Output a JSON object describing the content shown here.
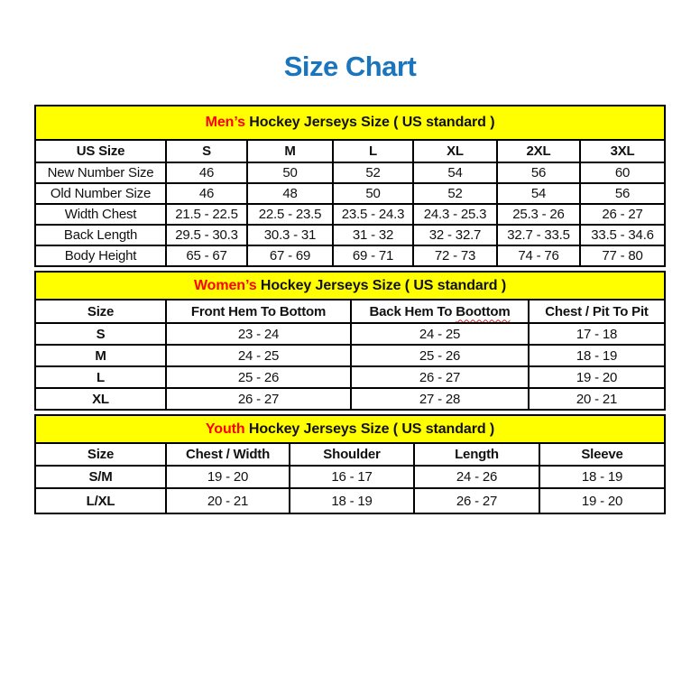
{
  "page_title": "Size Chart",
  "colors": {
    "title_blue": "#1B75BC",
    "band_yellow": "#FFFF00",
    "highlight_red": "#FF0000",
    "border_black": "#000000",
    "text_black": "#111111"
  },
  "spellcheck_word": "Boottom",
  "chart_data": [
    {
      "type": "table",
      "id": "mens",
      "title": "Men’s Hockey Jerseys Size ( US standard )",
      "title_highlight": "Men’s",
      "title_rest": " Hockey Jerseys Size ( US standard )",
      "columns": [
        "US Size",
        "S",
        "M",
        "L",
        "XL",
        "2XL",
        "3XL"
      ],
      "rows": [
        {
          "label": "New Number Size",
          "values": [
            "46",
            "50",
            "52",
            "54",
            "56",
            "60"
          ]
        },
        {
          "label": "Old Number Size",
          "values": [
            "46",
            "48",
            "50",
            "52",
            "54",
            "56"
          ]
        },
        {
          "label": "Width Chest",
          "values": [
            "21.5 - 22.5",
            "22.5 - 23.5",
            "23.5 - 24.3",
            "24.3 - 25.3",
            "25.3 - 26",
            "26 - 27"
          ]
        },
        {
          "label": "Back Length",
          "values": [
            "29.5 - 30.3",
            "30.3 - 31",
            "31 - 32",
            "32 - 32.7",
            "32.7 - 33.5",
            "33.5 - 34.6"
          ]
        },
        {
          "label": "Body Height",
          "values": [
            "65 - 67",
            "67 - 69",
            "69 - 71",
            "72 - 73",
            "74 - 76",
            "77 - 80"
          ]
        }
      ]
    },
    {
      "type": "table",
      "id": "womens",
      "title": "Women’s Hockey Jerseys Size ( US standard )",
      "title_highlight": "Women’s",
      "title_rest": " Hockey Jerseys Size ( US standard )",
      "columns": [
        "Size",
        "Front Hem To Bottom",
        "Back Hem To Boottom",
        "Chest / Pit To Pit"
      ],
      "rows": [
        {
          "label": "S",
          "values": [
            "23 - 24",
            "24 - 25",
            "17 - 18"
          ]
        },
        {
          "label": "M",
          "values": [
            "24 - 25",
            "25 - 26",
            "18 - 19"
          ]
        },
        {
          "label": "L",
          "values": [
            "25 - 26",
            "26 - 27",
            "19 - 20"
          ]
        },
        {
          "label": "XL",
          "values": [
            "26 - 27",
            "27 - 28",
            "20 - 21"
          ]
        }
      ]
    },
    {
      "type": "table",
      "id": "youth",
      "title": "Youth Hockey Jerseys Size ( US standard )",
      "title_highlight": "Youth",
      "title_rest": " Hockey Jerseys Size ( US standard )",
      "columns": [
        "Size",
        "Chest / Width",
        "Shoulder",
        "Length",
        "Sleeve"
      ],
      "rows": [
        {
          "label": "S/M",
          "values": [
            "19 - 20",
            "16 - 17",
            "24 - 26",
            "18 - 19"
          ]
        },
        {
          "label": "L/XL",
          "values": [
            "20 - 21",
            "18 - 19",
            "26 - 27",
            "19 - 20"
          ]
        }
      ]
    }
  ]
}
